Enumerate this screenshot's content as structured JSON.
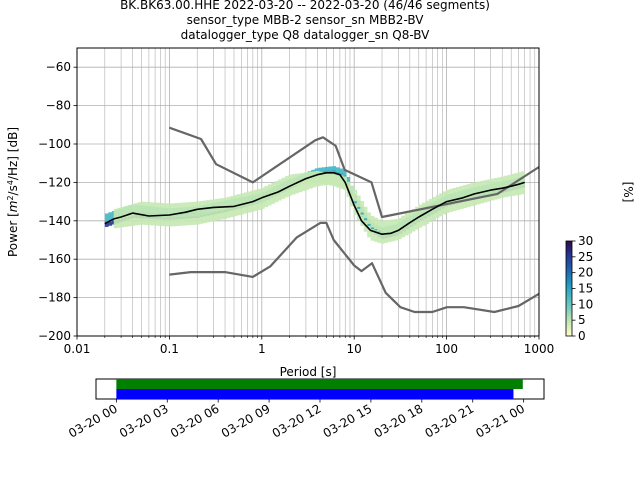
{
  "title_lines": [
    "BK.BK63.00.HHE   2022-03-20 -- 2022-03-20  (46/46 segments)",
    "sensor_type MBB-2 sensor_sn MBB2-BV",
    "datalogger_type Q8 datalogger_sn Q8-BV"
  ],
  "chart_data": [
    {
      "type": "heatmap",
      "xlabel": "Period [s]",
      "ylabel": "Power [m²/s⁴/Hz] [dB]",
      "ylabel_parts": {
        "pre": "Power [",
        "m": "m",
        "exp2": "2",
        "mid": "/s",
        "exp4": "4",
        "post": "/Hz] [dB]"
      },
      "xscale": "log",
      "xlim": [
        0.01,
        1000
      ],
      "ylim": [
        -200,
        -50
      ],
      "x_tick_values": [
        0.01,
        0.1,
        1,
        10,
        100,
        1000
      ],
      "x_tick_labels": [
        "0.01",
        "0.1",
        "1",
        "10",
        "100",
        "1000"
      ],
      "y_tick_values": [
        -200,
        -180,
        -160,
        -140,
        -120,
        -100,
        -80,
        -60
      ],
      "y_tick_labels": [
        "−200",
        "−180",
        "−160",
        "−140",
        "−120",
        "−100",
        "−80",
        "−60"
      ],
      "grid": true,
      "colorbar": {
        "label": "[%]",
        "range": [
          0,
          30
        ],
        "tick_values": [
          0,
          5,
          10,
          15,
          20,
          25,
          30
        ],
        "tick_labels": [
          "0",
          "5",
          "10",
          "15",
          "20",
          "25",
          "30"
        ],
        "colormap": [
          "#ffffcc",
          "#c7e9b4",
          "#7fcdbb",
          "#41b6c4",
          "#1d91c0",
          "#225ea8",
          "#253494",
          "#2d0a4a"
        ]
      },
      "mode_curve": {
        "color": "#000000",
        "x": [
          0.02,
          0.025,
          0.03,
          0.04,
          0.06,
          0.1,
          0.15,
          0.2,
          0.3,
          0.5,
          0.8,
          1,
          1.5,
          2,
          3,
          4,
          5,
          6,
          7,
          8,
          10,
          12,
          15,
          20,
          25,
          30,
          40,
          50,
          70,
          100,
          150,
          200,
          300,
          400,
          500,
          600,
          700
        ],
        "y": [
          -141.5,
          -139,
          -138,
          -136,
          -137.5,
          -137,
          -135.5,
          -134,
          -133,
          -132.5,
          -130,
          -128,
          -125,
          -122,
          -118,
          -116,
          -115,
          -115,
          -116,
          -120,
          -132,
          -140,
          -145,
          -147,
          -146.5,
          -145,
          -141,
          -138,
          -134,
          -130,
          -128,
          -126,
          -124,
          -123,
          -122,
          -121,
          -120
        ]
      },
      "density_bands": [
        {
          "x": [
            0.02,
            0.04,
            0.1,
            0.2,
            0.4,
            1,
            2,
            4,
            6,
            8,
            10,
            15,
            20,
            30,
            50,
            100,
            200,
            400,
            700
          ],
          "y": [
            -142,
            -137,
            -138,
            -137,
            -134,
            -129,
            -122,
            -116,
            -115,
            -118,
            -130,
            -144,
            -148,
            -146,
            -139,
            -131,
            -127,
            -124,
            -121
          ],
          "spread": 1.5,
          "percent": 27
        },
        {
          "x": [
            0.02,
            0.04,
            0.1,
            0.2,
            0.4,
            1,
            2,
            4,
            6,
            8,
            10,
            15,
            20,
            30,
            50,
            100,
            200,
            400,
            700
          ],
          "y": [
            -139,
            -134,
            -136,
            -135,
            -132,
            -128,
            -121,
            -115,
            -114,
            -116,
            -128,
            -143,
            -146,
            -144,
            -137,
            -129,
            -125,
            -122,
            -119
          ],
          "spread": 2.5,
          "percent": 14
        },
        {
          "x": [
            0.025,
            0.05,
            0.1,
            0.2,
            0.4,
            1,
            2,
            4,
            6,
            8,
            10,
            15,
            20,
            30,
            50,
            100,
            200,
            400,
            700
          ],
          "y": [
            -141,
            -139,
            -140,
            -139,
            -136,
            -131,
            -124,
            -119,
            -118,
            -120,
            -133,
            -147,
            -149,
            -147,
            -141,
            -133,
            -129,
            -125,
            -123
          ],
          "spread": 3,
          "percent": 5
        },
        {
          "x": [
            0.025,
            0.05,
            0.1,
            0.2,
            0.4,
            1,
            2,
            4,
            6,
            8,
            10,
            15,
            20,
            30,
            50,
            100,
            200,
            400,
            700
          ],
          "y": [
            -137,
            -133,
            -134,
            -133,
            -131,
            -126,
            -119,
            -117,
            -119,
            -121,
            -126,
            -140,
            -143,
            -142,
            -135,
            -127,
            -123,
            -120,
            -117
          ],
          "spread": 3,
          "percent": 3
        }
      ],
      "noise_models": {
        "color": "#666666",
        "high": {
          "x": [
            0.1,
            0.22,
            0.32,
            0.8,
            3.8,
            4.6,
            6.3,
            7.9,
            15.4,
            20,
            354.8,
            1000
          ],
          "y": [
            -91.5,
            -97.4,
            -110.5,
            -120,
            -98,
            -96.5,
            -101,
            -113.5,
            -120,
            -138,
            -126,
            -112
          ]
        },
        "low": {
          "x": [
            0.1,
            0.17,
            0.4,
            0.8,
            1.24,
            2.4,
            4.3,
            5,
            6,
            10,
            12,
            15.6,
            21.9,
            31.6,
            45,
            70,
            101,
            154,
            328,
            600,
            1000
          ],
          "y": [
            -168,
            -166.7,
            -166.7,
            -169.2,
            -163.7,
            -148.6,
            -141.1,
            -141.1,
            -150,
            -163.3,
            -166.2,
            -162.1,
            -177.5,
            -185,
            -187.5,
            -187.5,
            -185,
            -185,
            -187.5,
            -184.4,
            -178
          ]
        }
      }
    },
    {
      "type": "timeline",
      "x_tick_labels": [
        "03-20 00",
        "03-20 03",
        "03-20 06",
        "03-20 09",
        "03-20 12",
        "03-20 15",
        "03-20 18",
        "03-20 21",
        "03-21 00"
      ],
      "x_tick_hours": [
        0,
        3,
        6,
        9,
        12,
        15,
        18,
        21,
        24
      ],
      "xlim_hours": [
        -1.2,
        25.2
      ],
      "bars": [
        {
          "color": "#008000",
          "start_hour": 0,
          "end_hour": 23.95,
          "row": 0
        },
        {
          "color": "#0000ff",
          "start_hour": 0,
          "end_hour": 23.4,
          "row": 1
        }
      ]
    }
  ]
}
